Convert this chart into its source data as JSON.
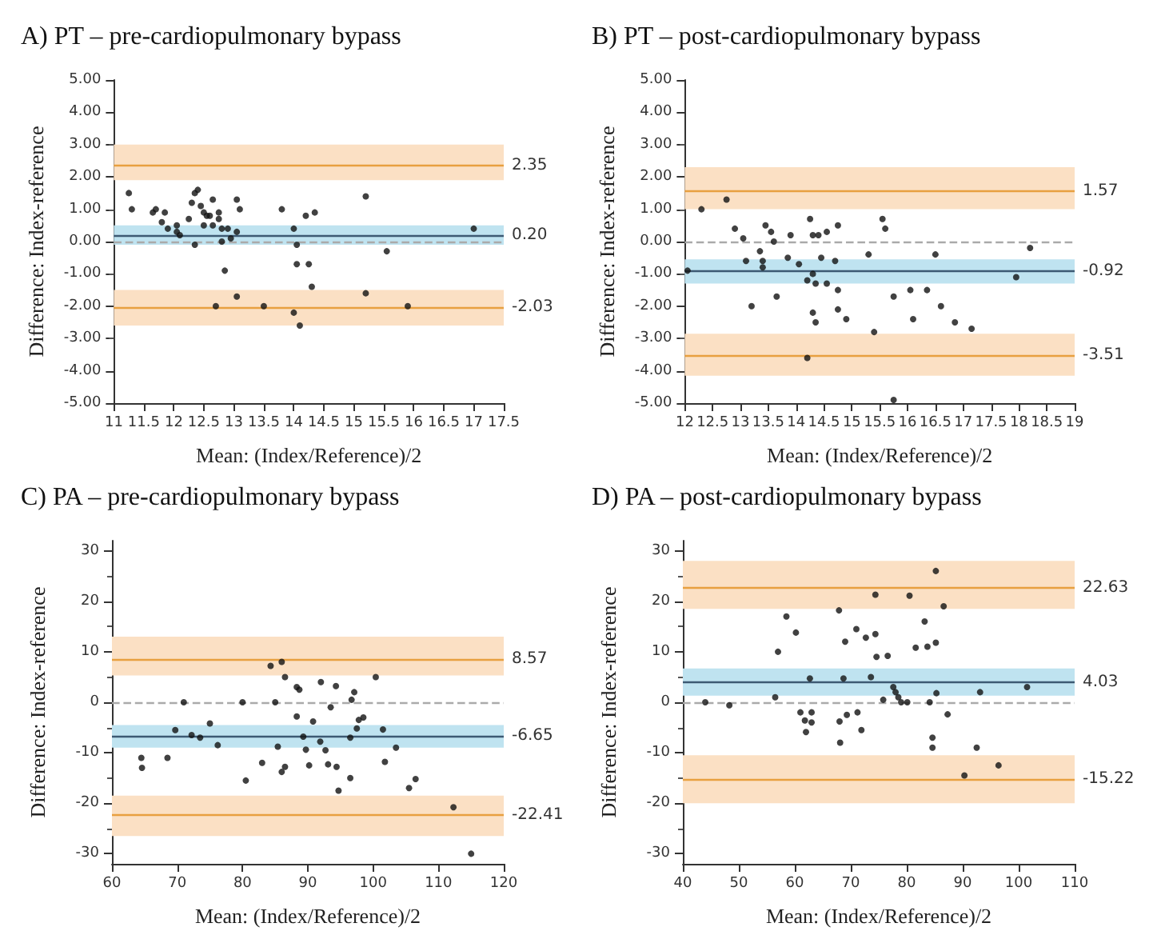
{
  "chart_data": [
    {
      "type": "scatter",
      "title": "A) PT – pre-cardiopulmonary bypass",
      "xlabel": "Mean: (Index/Reference)/2",
      "ylabel": "Difference: Index-reference",
      "marker": "circle",
      "xlim": [
        11,
        17.5
      ],
      "xticks": [
        11,
        11.5,
        12,
        12.5,
        13,
        13.5,
        14,
        14.5,
        15,
        15.5,
        16,
        16.5,
        17,
        17.5
      ],
      "ylim": [
        -5,
        5
      ],
      "yticks": [
        {
          "value": -5,
          "label": "-5.00"
        },
        {
          "value": -4,
          "label": "-4.00"
        },
        {
          "value": -3,
          "label": "-3.00"
        },
        {
          "value": -2,
          "label": "-2.00"
        },
        {
          "value": -1,
          "label": "-1.00"
        },
        {
          "value": 0,
          "label": "0.00"
        },
        {
          "value": 1,
          "label": "1.00"
        },
        {
          "value": 2,
          "label": "2.00"
        },
        {
          "value": 3,
          "label": "3.00"
        },
        {
          "value": 4,
          "label": "4.00"
        },
        {
          "value": 5,
          "label": "5.00"
        }
      ],
      "bands": [
        {
          "axis": "y",
          "from": 1.9,
          "to": 3.0,
          "color": "#fbe0c4"
        },
        {
          "axis": "y",
          "from": -0.1,
          "to": 0.5,
          "color": "#bfe3f0"
        },
        {
          "axis": "y",
          "from": -2.6,
          "to": -1.5,
          "color": "#fbe0c4"
        }
      ],
      "ref_lines": [
        {
          "axis": "y",
          "value": 2.35,
          "label": "2.35",
          "color": "#e8a040",
          "line_style": "solid"
        },
        {
          "axis": "y",
          "value": 0.2,
          "label": "0.20",
          "color": "#3d5a73",
          "line_style": "solid"
        },
        {
          "axis": "y",
          "value": -2.03,
          "label": "-2.03",
          "color": "#e8a040",
          "line_style": "solid"
        },
        {
          "axis": "y",
          "value": 0,
          "label": null,
          "color": "#aaaaaa",
          "line_style": "dashed"
        }
      ],
      "series": [
        {
          "color": "#111111",
          "x": [
            11.25,
            11.3,
            11.65,
            11.7,
            11.8,
            11.85,
            11.9,
            12.05,
            12.05,
            12.1,
            12.25,
            12.3,
            12.35,
            12.4,
            12.35,
            12.45,
            12.5,
            12.55,
            12.5,
            12.6,
            12.65,
            12.65,
            12.75,
            12.75,
            12.8,
            12.8,
            12.85,
            12.9,
            12.95,
            12.7,
            13.05,
            13.1,
            13.05,
            13.05,
            13.5,
            13.8,
            14.0,
            14.05,
            14.05,
            14.0,
            14.1,
            14.2,
            14.25,
            14.3,
            14.35,
            15.2,
            15.2,
            15.55,
            15.9,
            17.0
          ],
          "values": [
            1.5,
            1.0,
            0.9,
            1.0,
            0.6,
            0.9,
            0.4,
            0.5,
            0.3,
            0.2,
            0.7,
            1.2,
            1.5,
            1.6,
            -0.1,
            1.1,
            0.9,
            0.8,
            0.5,
            0.8,
            1.3,
            0.5,
            0.9,
            0.7,
            0.4,
            0.0,
            -0.9,
            0.4,
            0.1,
            -2.0,
            1.3,
            1.0,
            0.3,
            -1.7,
            -2.0,
            1.0,
            0.4,
            -0.1,
            -0.7,
            -2.2,
            -2.6,
            0.8,
            -0.7,
            -1.4,
            0.9,
            1.4,
            -1.6,
            -0.3,
            -2.0,
            0.4
          ]
        }
      ]
    },
    {
      "type": "scatter",
      "title": "B) PT – post-cardiopulmonary bypass",
      "xlabel": "Mean: (Index/Reference)/2",
      "ylabel": "Difference: Index-reference",
      "marker": "circle",
      "xlim": [
        12,
        19
      ],
      "xticks": [
        12,
        12.5,
        13,
        13.5,
        14,
        14.5,
        15,
        15.5,
        16,
        16.5,
        17,
        17.5,
        18,
        18.5,
        19
      ],
      "ylim": [
        -5,
        5
      ],
      "yticks": [
        {
          "value": -5,
          "label": "-5.00"
        },
        {
          "value": -4,
          "label": "-4.00"
        },
        {
          "value": -3,
          "label": "-3.00"
        },
        {
          "value": -2,
          "label": "-2.00"
        },
        {
          "value": -1,
          "label": "-1.00"
        },
        {
          "value": 0,
          "label": "0.00"
        },
        {
          "value": 1,
          "label": "1.00"
        },
        {
          "value": 2,
          "label": "2.00"
        },
        {
          "value": 3,
          "label": "3.00"
        },
        {
          "value": 4,
          "label": "4.00"
        },
        {
          "value": 5,
          "label": "5.00"
        }
      ],
      "bands": [
        {
          "axis": "y",
          "from": 1.0,
          "to": 2.3,
          "color": "#fbe0c4"
        },
        {
          "axis": "y",
          "from": -1.3,
          "to": -0.55,
          "color": "#bfe3f0"
        },
        {
          "axis": "y",
          "from": -4.15,
          "to": -2.85,
          "color": "#fbe0c4"
        }
      ],
      "ref_lines": [
        {
          "axis": "y",
          "value": 1.57,
          "label": "1.57",
          "color": "#e8a040",
          "line_style": "solid"
        },
        {
          "axis": "y",
          "value": -0.92,
          "label": "-0.92",
          "color": "#3d5a73",
          "line_style": "solid"
        },
        {
          "axis": "y",
          "value": -3.51,
          "label": "-3.51",
          "color": "#e8a040",
          "line_style": "solid"
        },
        {
          "axis": "y",
          "value": 0,
          "label": null,
          "color": "#aaaaaa",
          "line_style": "dashed"
        }
      ],
      "series": [
        {
          "color": "#111111",
          "x": [
            12.05,
            12.3,
            12.75,
            12.9,
            13.05,
            13.1,
            13.2,
            13.35,
            13.4,
            13.4,
            13.45,
            13.55,
            13.6,
            13.65,
            13.85,
            13.9,
            14.05,
            14.2,
            14.25,
            14.3,
            14.3,
            14.35,
            14.3,
            14.35,
            14.4,
            14.45,
            14.2,
            14.55,
            14.55,
            14.7,
            14.75,
            14.75,
            14.75,
            14.9,
            15.3,
            15.4,
            15.55,
            15.6,
            15.75,
            15.75,
            16.05,
            16.1,
            16.35,
            16.5,
            16.6,
            16.85,
            17.15,
            17.95,
            18.2
          ],
          "values": [
            -0.9,
            1.0,
            1.3,
            0.4,
            0.1,
            -0.6,
            -2.0,
            -0.3,
            -0.6,
            -0.8,
            0.5,
            0.3,
            0.0,
            -1.7,
            -0.5,
            0.2,
            -0.7,
            -1.2,
            0.7,
            0.2,
            -1.0,
            -1.3,
            -2.2,
            -2.5,
            0.2,
            -0.5,
            -3.6,
            0.3,
            -1.3,
            -0.6,
            0.5,
            -1.5,
            -2.1,
            -2.4,
            -0.4,
            -2.8,
            0.7,
            0.4,
            -1.7,
            -4.9,
            -1.5,
            -2.4,
            -1.5,
            -0.4,
            -2.0,
            -2.5,
            -2.7,
            -1.1,
            -0.2
          ]
        }
      ]
    },
    {
      "type": "scatter",
      "title": "C) PA – pre-cardiopulmonary bypass",
      "xlabel": "Mean: (Index/Reference)/2",
      "ylabel": "Difference: Index-reference",
      "marker": "circle",
      "xlim": [
        60,
        120
      ],
      "xticks": [
        60,
        70,
        80,
        90,
        100,
        110,
        120
      ],
      "ylim": [
        -32,
        32
      ],
      "yticks": [
        -30,
        -20,
        -10,
        0,
        10,
        20,
        30
      ],
      "bands": [
        {
          "axis": "y",
          "from": 5.3,
          "to": 13,
          "color": "#fbe0c4"
        },
        {
          "axis": "y",
          "from": -9,
          "to": -4.5,
          "color": "#bfe3f0"
        },
        {
          "axis": "y",
          "from": -26.5,
          "to": -18.5,
          "color": "#fbe0c4"
        }
      ],
      "ref_lines": [
        {
          "axis": "y",
          "value": 8.57,
          "label": "8.57",
          "color": "#e8a040",
          "line_style": "solid"
        },
        {
          "axis": "y",
          "value": -6.65,
          "label": "-6.65",
          "color": "#3d5a73",
          "line_style": "solid"
        },
        {
          "axis": "y",
          "value": -22.41,
          "label": "-22.41",
          "color": "#e8a040",
          "line_style": "solid"
        },
        {
          "axis": "y",
          "value": 0,
          "label": null,
          "color": "#aaaaaa",
          "line_style": "dashed"
        }
      ],
      "series": [
        {
          "color": "#111111",
          "x": [
            64.5,
            64.6,
            68.5,
            69.7,
            71,
            72.2,
            73.5,
            75,
            76.2,
            80,
            80.5,
            83,
            84.3,
            85,
            85.4,
            86,
            86,
            86.5,
            86.5,
            88.3,
            88.7,
            88.3,
            89.3,
            89.7,
            90.2,
            90.8,
            92,
            91.9,
            92.7,
            93.1,
            93.5,
            94.3,
            94.4,
            94.7,
            96.5,
            96.5,
            96.7,
            97.1,
            97.5,
            97.8,
            98.5,
            100.4,
            101.5,
            101.8,
            103.5,
            105.5,
            106.5,
            112.3,
            115
          ],
          "values": [
            -11,
            -13,
            -11,
            -5.5,
            0,
            -6.5,
            -7,
            -4.2,
            -8.5,
            0,
            -15.5,
            -12,
            7.2,
            0,
            -8.8,
            8,
            -13.8,
            5,
            -12.8,
            3,
            2.5,
            -2.8,
            -6.8,
            -9.4,
            -12.5,
            -3.8,
            4,
            -7.8,
            -9.5,
            -12.3,
            -1,
            3.2,
            -12.8,
            -17.5,
            -15,
            -7,
            0.5,
            2,
            -5.2,
            -3.5,
            -3,
            5,
            -5.4,
            -11.8,
            -9,
            -17,
            -15.2,
            -20.8,
            -30
          ]
        }
      ]
    },
    {
      "type": "scatter",
      "title": "D) PA – post-cardiopulmonary bypass",
      "xlabel": "Mean: (Index/Reference)/2",
      "ylabel": "Difference: Index-reference",
      "marker": "circle",
      "xlim": [
        40,
        110
      ],
      "xticks": [
        40,
        50,
        60,
        70,
        80,
        90,
        100,
        110
      ],
      "ylim": [
        -32,
        32
      ],
      "yticks": [
        -30,
        -20,
        -10,
        0,
        10,
        20,
        30
      ],
      "bands": [
        {
          "axis": "y",
          "from": 18.5,
          "to": 28,
          "color": "#fbe0c4"
        },
        {
          "axis": "y",
          "from": 1.3,
          "to": 6.7,
          "color": "#bfe3f0"
        },
        {
          "axis": "y",
          "from": -20,
          "to": -10.5,
          "color": "#fbe0c4"
        }
      ],
      "ref_lines": [
        {
          "axis": "y",
          "value": 22.63,
          "label": "22.63",
          "color": "#e8a040",
          "line_style": "solid"
        },
        {
          "axis": "y",
          "value": 4.03,
          "label": "4.03",
          "color": "#3d5a73",
          "line_style": "solid"
        },
        {
          "axis": "y",
          "value": -15.22,
          "label": "-15.22",
          "color": "#e8a040",
          "line_style": "solid"
        },
        {
          "axis": "y",
          "value": 0,
          "label": null,
          "color": "#aaaaaa",
          "line_style": "dashed"
        }
      ],
      "series": [
        {
          "color": "#111111",
          "x": [
            44,
            48.3,
            56.5,
            57,
            58.5,
            60.2,
            61,
            61.8,
            62,
            62.7,
            63,
            63,
            67.9,
            68,
            68.1,
            68.7,
            69,
            69.3,
            71,
            71.2,
            71.9,
            72.7,
            73.6,
            74.4,
            74.4,
            74.6,
            75.8,
            76.6,
            77.6,
            78,
            78.5,
            79,
            80.1,
            80.5,
            81.6,
            83.2,
            83.7,
            84.1,
            84.6,
            84.6,
            85.2,
            85.2,
            85.3,
            86.6,
            87.3,
            90.3,
            92.5,
            93.1,
            96.4,
            101.5
          ],
          "values": [
            0,
            -0.6,
            1,
            10,
            17,
            13.8,
            -2,
            -3.6,
            -5.9,
            4.7,
            -2,
            -4,
            18.2,
            -3.8,
            -8,
            4.7,
            12,
            -2.5,
            14.5,
            -2,
            -5.5,
            12.8,
            5,
            21.3,
            13.5,
            9,
            0.5,
            9.2,
            3,
            2,
            1,
            0,
            0,
            21.1,
            10.8,
            16,
            11,
            0,
            -7,
            -9,
            26,
            11.8,
            1.8,
            19,
            -2.4,
            -14.5,
            -9,
            2,
            -12.5,
            3
          ]
        }
      ]
    }
  ]
}
